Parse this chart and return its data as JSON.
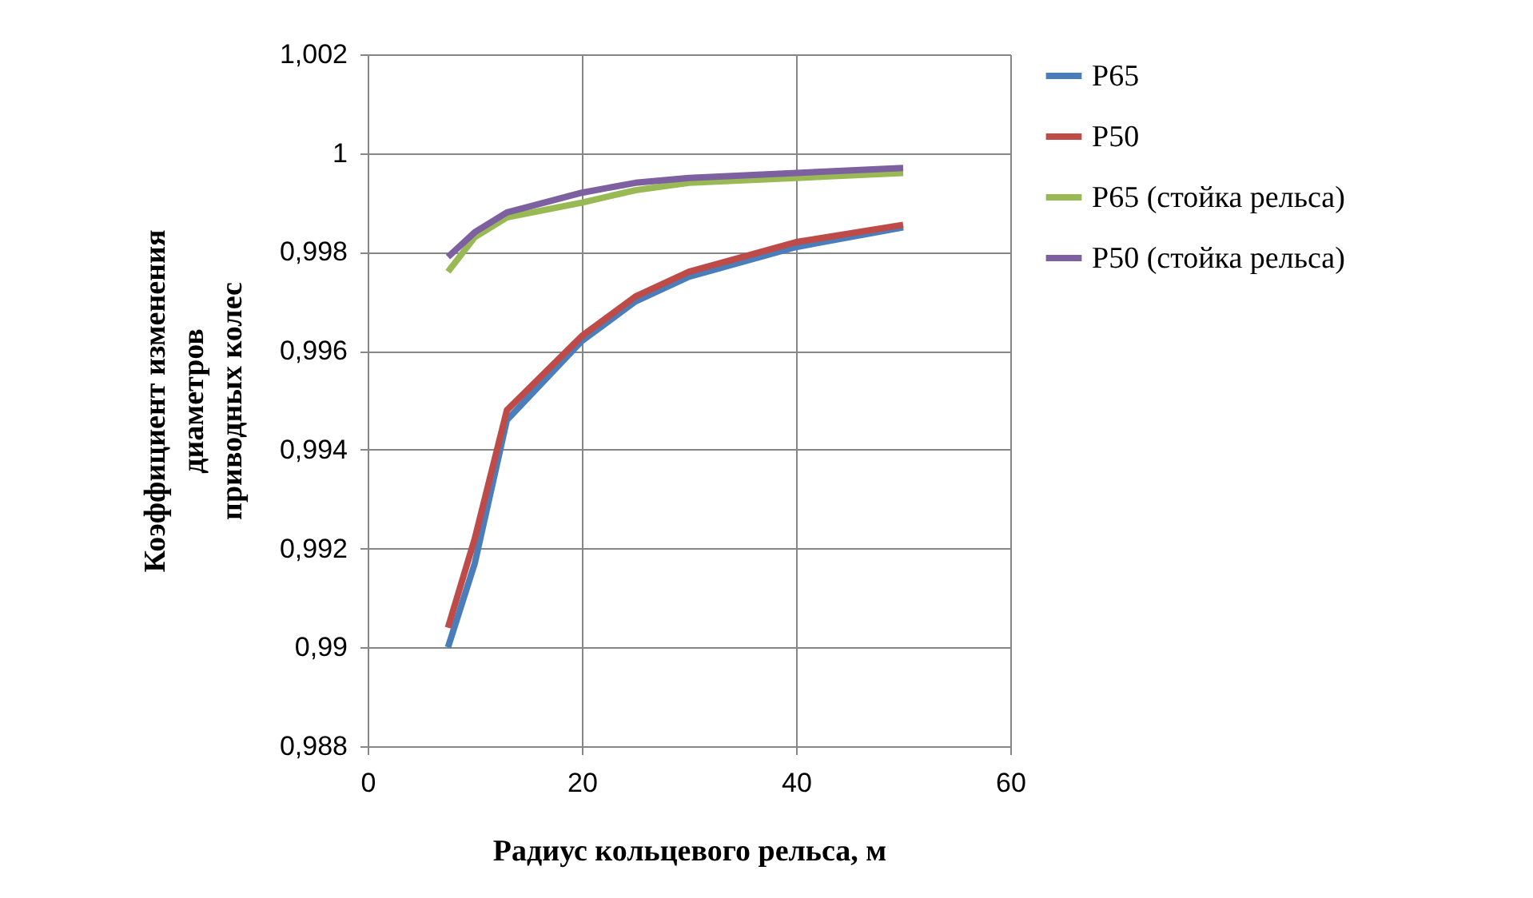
{
  "chart_data": {
    "type": "line",
    "xlabel": "Радиус кольцевого рельса, м",
    "ylabel": "Коэффициент изменения\nдиаметров\nприводных колес",
    "x": [
      7.5,
      10,
      13,
      20,
      25,
      30,
      40,
      50
    ],
    "series": [
      {
        "name": "P65",
        "color": "#4a7ebb",
        "values": [
          0.99,
          0.9917,
          0.9946,
          0.9962,
          0.997,
          0.9975,
          0.9981,
          0.9985
        ]
      },
      {
        "name": "P50",
        "color": "#be4b48",
        "values": [
          0.9904,
          0.9922,
          0.9948,
          0.9963,
          0.9971,
          0.9976,
          0.9982,
          0.99855
        ]
      },
      {
        "name": "P65 (стойка рельса)",
        "color": "#98b954",
        "values": [
          0.9976,
          0.9983,
          0.9987,
          0.999,
          0.99925,
          0.9994,
          0.9995,
          0.9996
        ]
      },
      {
        "name": "P50 (стойка рельса)",
        "color": "#7d60a0",
        "values": [
          0.9979,
          0.9984,
          0.9988,
          0.9992,
          0.9994,
          0.9995,
          0.9996,
          0.9997
        ]
      }
    ],
    "xlim": [
      0,
      60
    ],
    "xticks": [
      0,
      20,
      40,
      60
    ],
    "ylim": [
      0.988,
      1.002
    ],
    "yticks": [
      {
        "value": 0.988,
        "label": "0,988"
      },
      {
        "value": 0.99,
        "label": "0,99"
      },
      {
        "value": 0.992,
        "label": "0,992"
      },
      {
        "value": 0.994,
        "label": "0,994"
      },
      {
        "value": 0.996,
        "label": "0,996"
      },
      {
        "value": 0.998,
        "label": "0,998"
      },
      1,
      {
        "value": 1.002,
        "label": "1,002"
      }
    ],
    "grid": true,
    "legend": "right",
    "marker": "none",
    "line_style": "solid"
  }
}
